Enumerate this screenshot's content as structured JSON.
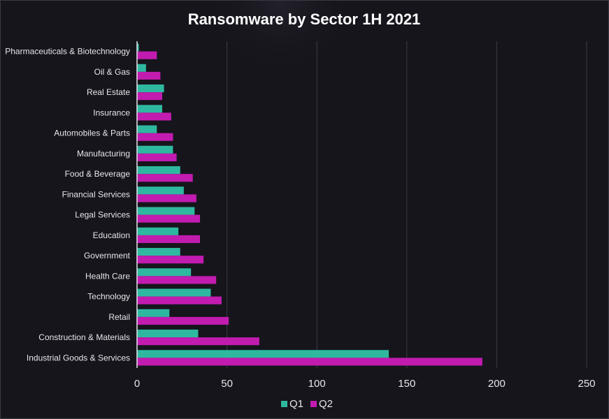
{
  "chart_data": {
    "type": "bar",
    "orientation": "horizontal",
    "title": "Ransomware by Sector 1H 2021",
    "xlabel": "",
    "ylabel": "",
    "xlim": [
      0,
      250
    ],
    "x_ticks": [
      0,
      50,
      100,
      150,
      200,
      250
    ],
    "grid": true,
    "legend_position": "bottom",
    "categories": [
      "Pharmaceuticals & Biotechnology",
      "Oil & Gas",
      "Real Estate",
      "Insurance",
      "Automobiles & Parts",
      "Manufacturing",
      "Food & Beverage",
      "Financial Services",
      "Legal Services",
      "Education",
      "Government",
      "Health Care",
      "Technology",
      "Retail",
      "Construction & Materials",
      "Industrial Goods & Services"
    ],
    "series": [
      {
        "name": "Q1",
        "color": "#2fb8a0",
        "values": [
          1,
          5,
          15,
          14,
          11,
          20,
          24,
          26,
          32,
          23,
          24,
          30,
          41,
          18,
          34,
          140
        ]
      },
      {
        "name": "Q2",
        "color": "#c21bb0",
        "values": [
          11,
          13,
          14,
          19,
          20,
          22,
          31,
          33,
          35,
          35,
          37,
          44,
          47,
          51,
          68,
          192
        ]
      }
    ]
  }
}
